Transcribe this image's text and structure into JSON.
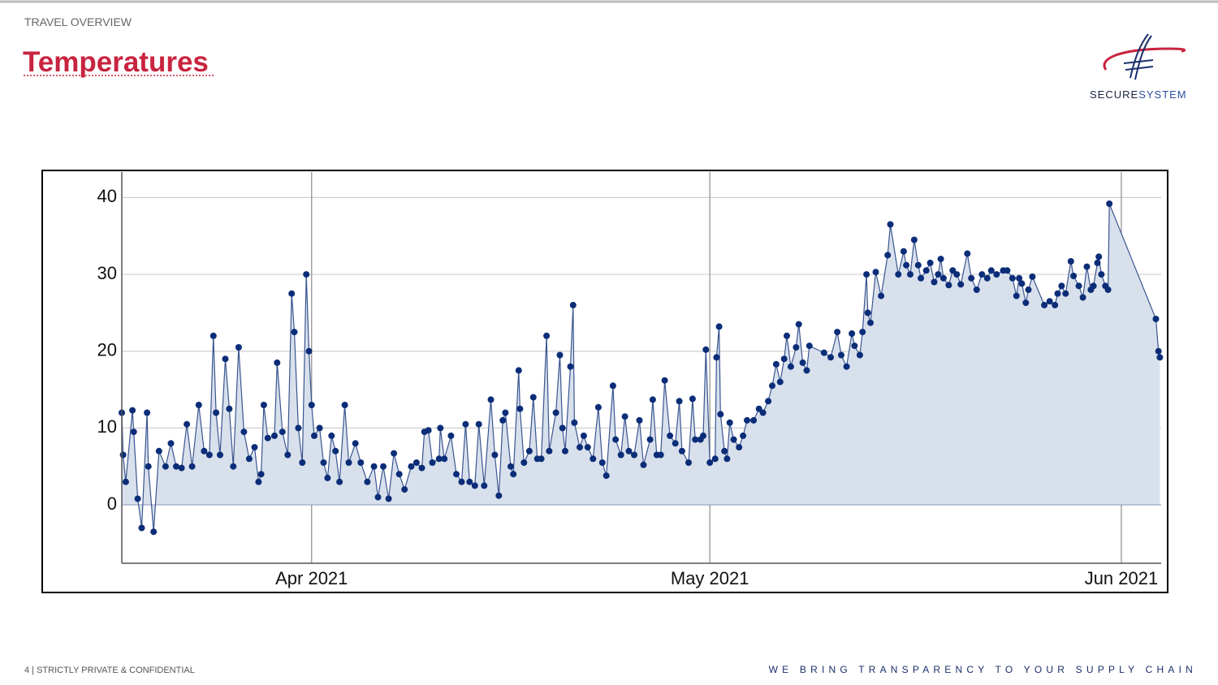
{
  "header": {
    "section": "TRAVEL OVERVIEW",
    "title": "Temperatures"
  },
  "logo": {
    "name_part1": "SECURE",
    "name_part2": "SYSTEM"
  },
  "chart_data": {
    "type": "area-line",
    "x": [
      76.7,
      76.8,
      77.0,
      77.5,
      77.6,
      77.9,
      78.2,
      78.6,
      78.7,
      79.1,
      79.5,
      80.0,
      80.4,
      80.8,
      81.2,
      81.6,
      82.0,
      82.5,
      82.9,
      83.3,
      83.6,
      83.8,
      84.1,
      84.5,
      84.8,
      85.1,
      85.5,
      85.9,
      86.3,
      86.7,
      87.0,
      87.2,
      87.4,
      87.7,
      88.2,
      88.4,
      88.8,
      89.2,
      89.5,
      89.7,
      90.0,
      90.3,
      90.6,
      90.8,
      91.0,
      91.2,
      91.6,
      91.9,
      92.2,
      92.5,
      92.8,
      93.1,
      93.5,
      93.8,
      94.3,
      94.7,
      95.2,
      95.7,
      96.0,
      96.4,
      96.8,
      97.2,
      97.6,
      98.0,
      98.5,
      98.9,
      99.3,
      99.5,
      99.8,
      100.1,
      100.6,
      100.7,
      101.0,
      101.5,
      101.9,
      102.3,
      102.6,
      102.9,
      103.3,
      103.6,
      104.0,
      104.5,
      104.8,
      105.1,
      105.4,
      105.6,
      106.0,
      106.2,
      106.6,
      106.7,
      107.0,
      107.4,
      107.7,
      108.0,
      108.3,
      108.7,
      108.9,
      109.4,
      109.7,
      109.9,
      110.1,
      110.5,
      110.7,
      110.8,
      111.2,
      111.5,
      111.8,
      112.2,
      112.6,
      112.9,
      113.2,
      113.7,
      113.9,
      114.3,
      114.6,
      114.9,
      115.3,
      115.7,
      116.0,
      116.5,
      116.7,
      117.0,
      117.3,
      117.6,
      118.0,
      118.4,
      118.7,
      118.9,
      119.4,
      119.7,
      119.9,
      120.3,
      120.5,
      120.7,
      121.0,
      121.4,
      121.5,
      121.7,
      121.8,
      122.1,
      122.3,
      122.5,
      122.8,
      123.2,
      123.5,
      123.8,
      124.3,
      124.7,
      125.0,
      125.4,
      125.7,
      126.0,
      126.3,
      126.6,
      126.8,
      127.1,
      127.5,
      127.7,
      128.0,
      128.3,
      128.5,
      129.6,
      130.1,
      130.6,
      130.9,
      131.3,
      131.7,
      131.9,
      132.3,
      132.5,
      132.8,
      132.9,
      133.1,
      133.5,
      133.9,
      134.4,
      134.6,
      135.2,
      135.6,
      135.8,
      136.1,
      136.4,
      136.7,
      136.9,
      137.3,
      137.6,
      137.9,
      138.2,
      138.4,
      138.6,
      139.0,
      139.3,
      139.6,
      139.9,
      140.4,
      140.7,
      141.1,
      141.5,
      141.9,
      142.2,
      142.6,
      143.1,
      143.4,
      143.8,
      144.1,
      144.3,
      144.5,
      144.8,
      145.0,
      145.3,
      146.2,
      146.6,
      147.0,
      147.2,
      147.5,
      147.8,
      148.2,
      148.4,
      148.8,
      149.1,
      149.4,
      149.7,
      149.9,
      150.2,
      150.3,
      150.5,
      150.8,
      151.0,
      151.1,
      154.6,
      154.8,
      154.9
    ],
    "values": [
      12,
      6.5,
      3,
      12.3,
      9.5,
      0.8,
      -3,
      12,
      5,
      -3.5,
      7,
      5,
      8,
      5,
      4.8,
      10.5,
      5,
      13,
      7,
      6.5,
      22,
      12,
      6.5,
      19,
      12.5,
      5,
      20.5,
      9.5,
      6,
      7.5,
      3,
      4,
      13,
      8.7,
      9,
      18.5,
      9.5,
      6.5,
      27.5,
      22.5,
      10,
      5.5,
      30,
      20,
      13,
      9,
      10,
      5.5,
      3.5,
      9,
      7,
      3,
      13,
      5.5,
      8,
      5.5,
      3,
      5,
      1,
      5,
      0.8,
      6.7,
      4,
      2,
      5,
      5.5,
      4.8,
      9.5,
      9.7,
      5.5,
      6,
      10,
      6,
      9,
      4,
      3,
      10.5,
      3,
      2.5,
      10.5,
      2.5,
      13.7,
      6.5,
      1.2,
      11,
      12,
      5,
      4,
      17.5,
      12.5,
      5.5,
      7,
      14,
      6,
      6,
      22,
      7,
      12,
      19.5,
      10,
      7,
      18,
      26,
      10.7,
      7.5,
      9,
      7.5,
      6,
      12.7,
      5.5,
      3.8,
      15.5,
      8.5,
      6.5,
      11.5,
      7,
      6.5,
      11,
      5.2,
      8.5,
      13.7,
      6.5,
      6.5,
      16.2,
      9,
      8,
      13.5,
      7,
      5.5,
      13.8,
      8.5,
      8.5,
      9,
      20.2,
      5.5,
      6,
      19.2,
      23.2,
      11.8,
      7,
      6,
      10.7,
      8.5,
      7.5,
      9,
      11,
      11,
      12.5,
      12,
      13.5,
      15.5,
      18.3,
      16,
      19,
      22,
      18,
      20.5,
      23.5,
      18.5,
      17.5,
      20.7,
      19.8,
      19.2,
      22.5,
      19.5,
      18,
      22.3,
      20.7,
      19.5,
      22.5,
      30,
      25,
      23.7,
      30.3,
      27.2,
      32.5,
      36.5,
      30,
      33,
      31.2,
      30,
      34.5,
      31.2,
      29.5,
      30.5,
      31.5,
      29,
      30,
      32,
      29.5,
      28.6,
      30.5,
      30,
      28.7,
      32.7,
      29.5,
      28,
      30,
      29.5,
      30.5,
      30,
      30.5,
      30.5,
      29.5,
      27.2,
      29.5,
      28.8,
      26.3,
      28,
      29.7,
      26,
      26.5,
      26,
      27.5,
      28.5,
      27.5,
      31.7,
      29.8,
      28.5,
      27,
      31,
      28,
      28.5,
      31.5,
      32.3,
      30,
      28.5,
      28,
      39.2,
      24.2,
      20,
      19.2
    ],
    "color": "#0b2d78",
    "line_color": "#3a5590",
    "area_color": "#d8e0ec",
    "xlim": [
      76.7,
      155.0
    ],
    "xticks": [
      {
        "value": 91,
        "label": "Apr 2021"
      },
      {
        "value": 121,
        "label": "May 2021"
      },
      {
        "value": 152,
        "label": "Jun 2021"
      }
    ],
    "ylim": [
      -7.6,
      43
    ],
    "yticks": [
      0,
      10,
      20,
      30,
      40
    ],
    "grid": true
  },
  "footer": {
    "page": "4 | STRICTLY PRIVATE & CONFIDENTIAL",
    "tagline": "WE BRING TRANSPARENCY TO YOUR SUPPLY CHAIN"
  }
}
